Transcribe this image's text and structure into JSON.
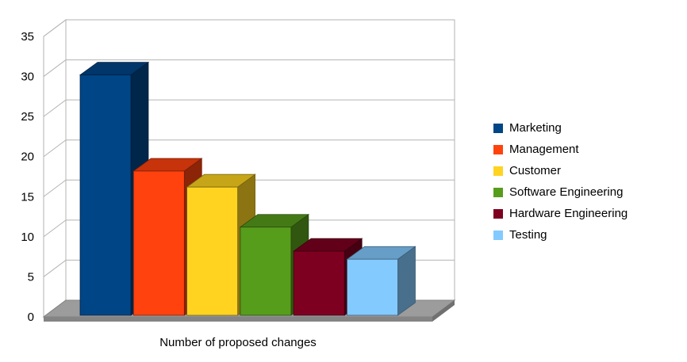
{
  "chart_data": {
    "type": "bar",
    "style": "3d",
    "title": "",
    "xlabel": "Number of proposed changes",
    "ylabel": "",
    "ylim": [
      0,
      35
    ],
    "yticks": [
      0,
      5,
      10,
      15,
      20,
      25,
      30,
      35
    ],
    "categories": [
      "Marketing",
      "Management",
      "Customer",
      "Software Engineering",
      "Hardware Engineering",
      "Testing"
    ],
    "values": [
      30,
      18,
      16,
      11,
      8,
      7
    ],
    "colors": [
      "#004586",
      "#FF420E",
      "#FFD320",
      "#579D1C",
      "#7E0021",
      "#83CAFF"
    ],
    "legend_position": "right",
    "grid": true,
    "background_color": "#FFFFFF",
    "gridline_color": "#B3B3B3",
    "wall_color": "#FFFFFF",
    "floor_color": "#9C9C9C",
    "floor_edge_color": "#848484",
    "text_color": "#000000"
  }
}
